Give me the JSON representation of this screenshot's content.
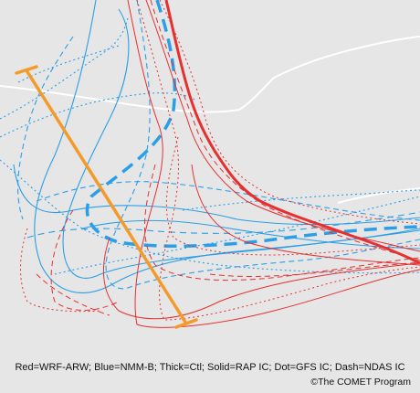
{
  "figure": {
    "legend_text": "Red=WRF-ARW; Blue=NMM-B; Thick=Ctl; Solid=RAP IC; Dot=GFS IC; Dash=NDAS IC",
    "credit_text": "©The COMET Program"
  },
  "colors": {
    "background": "#e6e6e6",
    "boundary": "#ffffff",
    "red_model": "#e53030",
    "blue_model": "#2a9fe8",
    "cross_section": "#f39a2b"
  }
}
